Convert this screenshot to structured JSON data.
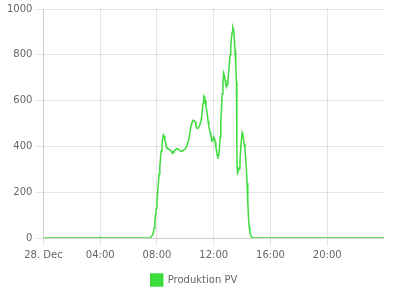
{
  "chart_data": {
    "type": "line",
    "x": [
      0.0,
      1.0,
      2.0,
      3.0,
      3.93,
      3.95,
      4.0,
      4.05,
      4.1,
      5.0,
      6.0,
      7.0,
      7.3,
      7.5,
      7.55,
      7.6,
      7.7,
      7.75,
      7.8,
      7.85,
      7.9,
      7.95,
      8.0,
      8.05,
      8.1,
      8.15,
      8.2,
      8.25,
      8.3,
      8.35,
      8.4,
      8.45,
      8.5,
      8.55,
      8.6,
      8.65,
      8.7,
      8.8,
      8.9,
      9.0,
      9.05,
      9.1,
      9.15,
      9.2,
      9.3,
      9.4,
      9.5,
      9.6,
      9.7,
      9.8,
      9.9,
      10.0,
      10.1,
      10.2,
      10.3,
      10.4,
      10.5,
      10.55,
      10.6,
      10.7,
      10.75,
      10.8,
      10.85,
      10.9,
      11.0,
      11.1,
      11.15,
      11.2,
      11.25,
      11.3,
      11.35,
      11.4,
      11.45,
      11.5,
      11.55,
      11.6,
      11.65,
      11.7,
      11.75,
      11.8,
      11.85,
      11.9,
      11.95,
      12.0,
      12.05,
      12.1,
      12.15,
      12.2,
      12.25,
      12.3,
      12.35,
      12.4,
      12.45,
      12.5,
      12.55,
      12.6,
      12.65,
      12.7,
      12.75,
      12.8,
      12.85,
      12.9,
      12.95,
      13.0,
      13.05,
      13.1,
      13.15,
      13.2,
      13.25,
      13.3,
      13.35,
      13.4,
      13.45,
      13.5,
      13.55,
      13.6,
      13.62,
      13.64,
      13.65,
      13.67,
      13.7,
      13.75,
      13.8,
      13.85,
      13.9,
      13.95,
      14.0,
      14.05,
      14.1,
      14.15,
      14.2,
      14.25,
      14.3,
      14.35,
      14.4,
      14.45,
      14.5,
      14.55,
      14.6,
      14.65,
      14.7,
      14.75,
      14.8,
      15.0,
      16.0,
      17.0,
      18.0,
      19.0,
      20.0,
      21.0,
      22.0,
      23.0,
      24.0
    ],
    "series": [
      {
        "name": "Produktion PV",
        "color": "#3ddc3d",
        "values": [
          0,
          0,
          0,
          0,
          0,
          2,
          2,
          1,
          0,
          0,
          0,
          0,
          0,
          0,
          2,
          5,
          15,
          25,
          45,
          70,
          100,
          130,
          160,
          200,
          240,
          280,
          310,
          350,
          380,
          410,
          435,
          450,
          445,
          430,
          420,
          400,
          395,
          390,
          385,
          380,
          375,
          370,
          375,
          380,
          385,
          390,
          388,
          383,
          378,
          380,
          385,
          390,
          400,
          420,
          450,
          490,
          510,
          515,
          512,
          508,
          490,
          480,
          478,
          480,
          490,
          510,
          530,
          560,
          590,
          620,
          615,
          600,
          575,
          560,
          540,
          510,
          490,
          475,
          460,
          445,
          435,
          425,
          430,
          440,
          435,
          420,
          400,
          380,
          360,
          355,
          360,
          390,
          440,
          510,
          570,
          630,
          680,
          720,
          710,
          690,
          670,
          660,
          670,
          690,
          720,
          760,
          800,
          840,
          870,
          900,
          920,
          910,
          870,
          820,
          760,
          680,
          560,
          400,
          310,
          280,
          285,
          295,
          305,
          340,
          390,
          430,
          460,
          450,
          430,
          410,
          390,
          350,
          300,
          240,
          160,
          90,
          50,
          25,
          12,
          6,
          3,
          1,
          0,
          0,
          0,
          0,
          0,
          0,
          0,
          0,
          0,
          0,
          0
        ]
      }
    ],
    "xlim": [
      0,
      24
    ],
    "xticks": [
      {
        "value": 0,
        "label": "28. Dec"
      },
      {
        "value": 4,
        "label": "04:00"
      },
      {
        "value": 8,
        "label": "08:00"
      },
      {
        "value": 12,
        "label": "12:00"
      },
      {
        "value": 16,
        "label": "16:00"
      },
      {
        "value": 20,
        "label": "20:00"
      }
    ],
    "ylim": [
      0,
      1000
    ],
    "yticks": [
      0,
      200,
      400,
      600,
      800,
      1000
    ],
    "grid": true,
    "legend": "bottom"
  }
}
